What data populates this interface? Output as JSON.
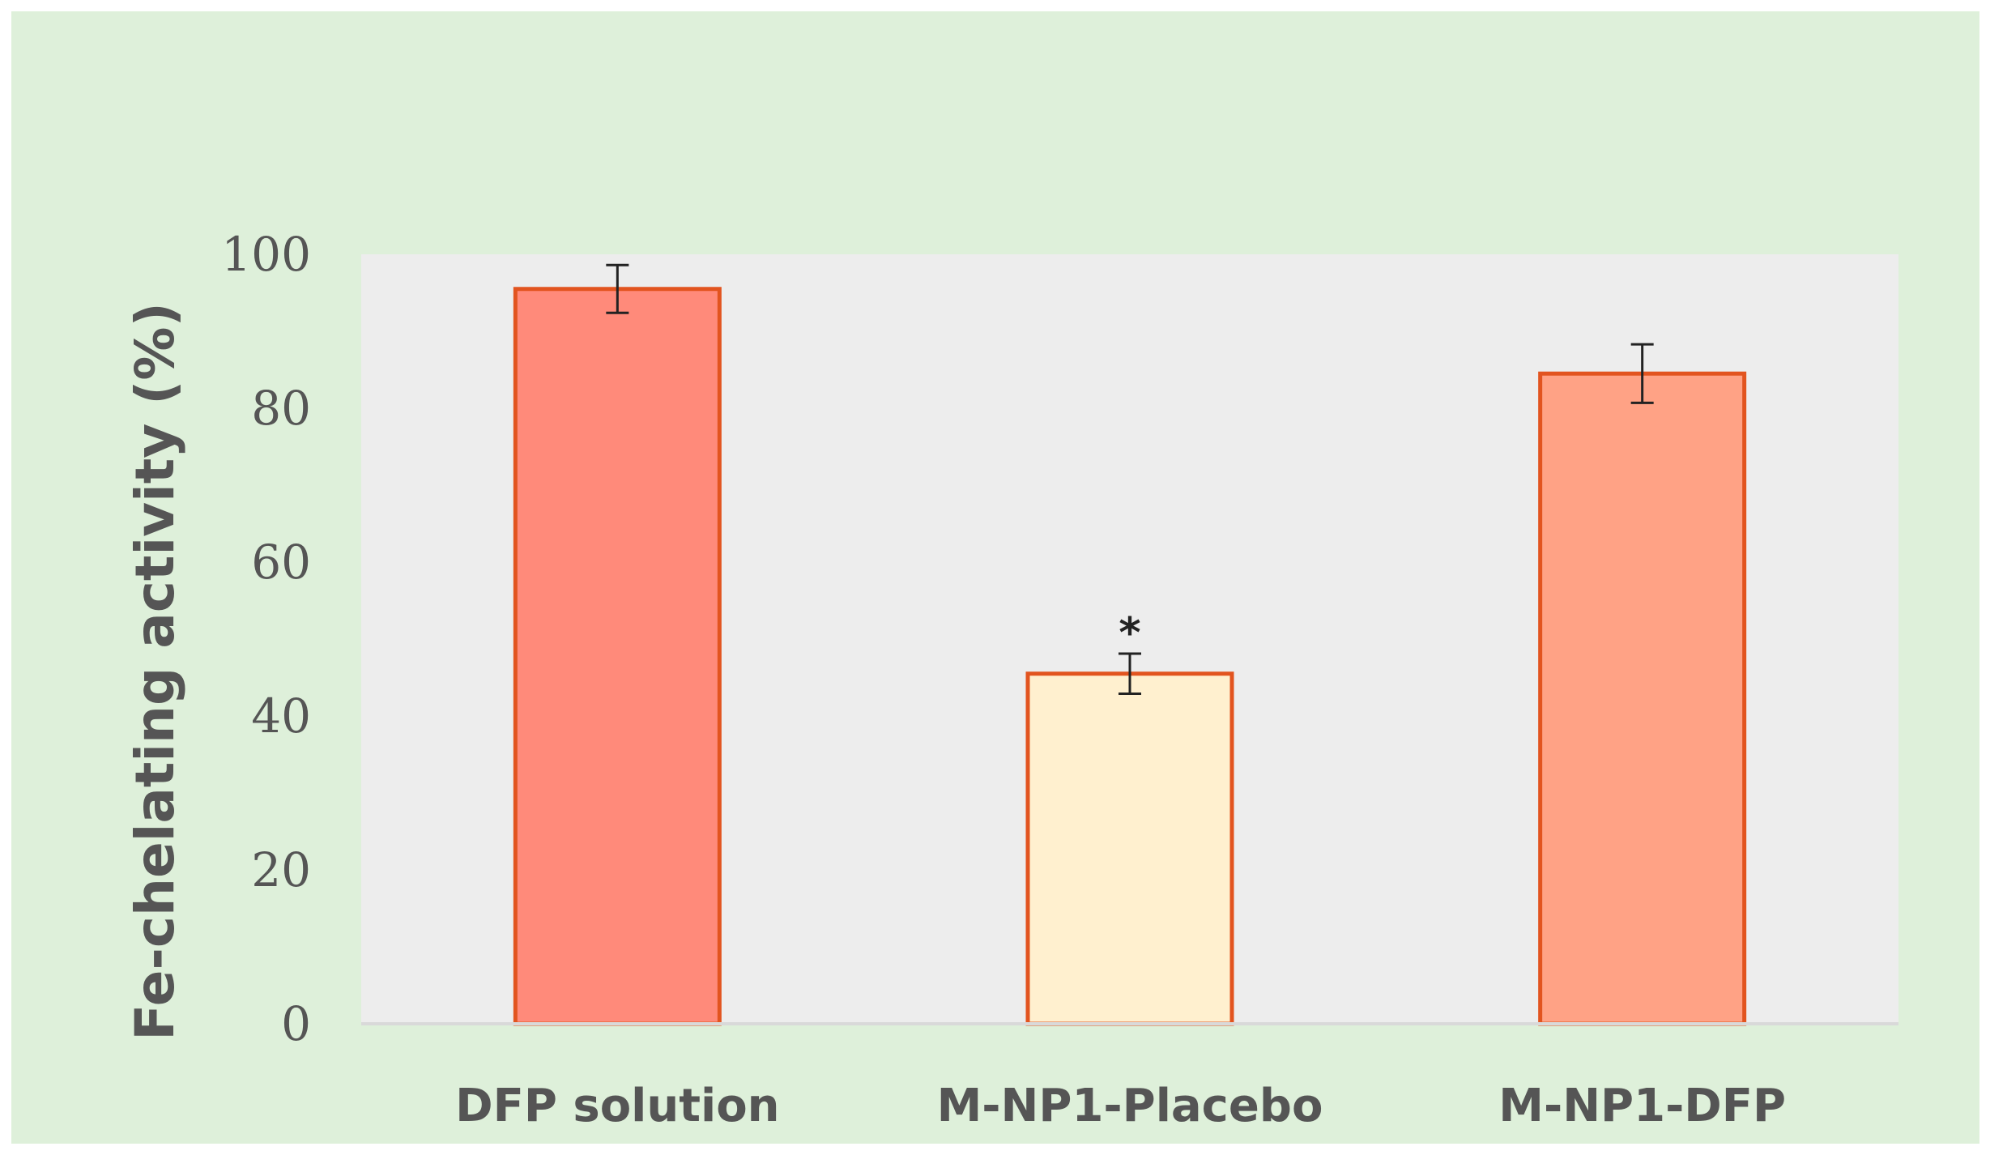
{
  "chart_data": {
    "type": "bar",
    "categories": [
      "DFP solution",
      "M-NP1-Placebo",
      "M-NP1-DFP"
    ],
    "values": [
      95.5,
      45.5,
      84.5
    ],
    "errors": [
      3.1,
      2.6,
      3.8
    ],
    "annotations": [
      "",
      "*",
      ""
    ],
    "ylabel": "Fe-chelating activity (%)",
    "ylim": [
      0,
      100
    ],
    "yticks": [
      0,
      20,
      40,
      60,
      80,
      100
    ],
    "grid": false,
    "legend": "none",
    "colors": {
      "bar_fills": [
        "#ff8a7a",
        "#fff0cf",
        "#ffa285"
      ],
      "bar_stroke": "#e2541f",
      "plot_background": "#ededed",
      "chart_background": "#def0da",
      "error_bar": "#222222"
    }
  }
}
